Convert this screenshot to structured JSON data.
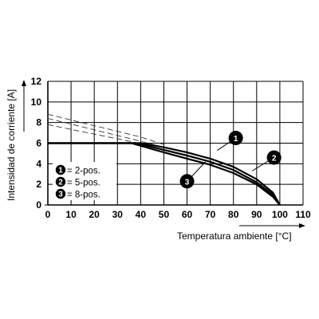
{
  "chart_data": {
    "type": "line",
    "xlabel": "Temperatura ambiente [°C]",
    "ylabel": "Intensidad de corriente [A]",
    "xlim": [
      0,
      110
    ],
    "ylim": [
      0,
      12
    ],
    "xticks": [
      "0",
      "10",
      "20",
      "30",
      "40",
      "50",
      "60",
      "70",
      "80",
      "90",
      "100",
      "110"
    ],
    "yticks": [
      "0",
      "2",
      "4",
      "6",
      "8",
      "10",
      "12"
    ],
    "grid": true,
    "legend_position": "bottom-left",
    "legend": [
      {
        "marker": "1",
        "label": "= 2-pos."
      },
      {
        "marker": "2",
        "label": "= 5-pos."
      },
      {
        "marker": "3",
        "label": "= 8-pos."
      }
    ],
    "series": [
      {
        "marker": "1",
        "derating_points": [
          [
            0,
            6
          ],
          [
            40,
            6
          ],
          [
            50,
            5.6
          ],
          [
            60,
            5.1
          ],
          [
            70,
            4.5
          ],
          [
            80,
            3.7
          ],
          [
            90,
            2.5
          ],
          [
            97,
            1.2
          ],
          [
            100,
            0
          ]
        ],
        "extrapolated_points": [
          [
            0,
            8.8
          ],
          [
            40,
            6.6
          ],
          [
            50,
            5.85
          ]
        ]
      },
      {
        "marker": "2",
        "derating_points": [
          [
            0,
            6
          ],
          [
            38,
            6
          ],
          [
            50,
            5.35
          ],
          [
            60,
            4.8
          ],
          [
            70,
            4.2
          ],
          [
            80,
            3.4
          ],
          [
            90,
            2.2
          ],
          [
            97,
            1.0
          ],
          [
            100,
            0
          ]
        ],
        "extrapolated_points": [
          [
            0,
            8.4
          ],
          [
            38,
            6.3
          ],
          [
            50,
            5.6
          ]
        ]
      },
      {
        "marker": "3",
        "derating_points": [
          [
            0,
            6
          ],
          [
            36,
            6
          ],
          [
            50,
            5.1
          ],
          [
            60,
            4.5
          ],
          [
            70,
            3.9
          ],
          [
            80,
            3.1
          ],
          [
            90,
            2.0
          ],
          [
            97,
            0.8
          ],
          [
            100,
            0
          ]
        ],
        "extrapolated_points": [
          [
            0,
            7.8
          ],
          [
            36,
            6.15
          ],
          [
            50,
            5.35
          ]
        ]
      }
    ],
    "annotations": [
      {
        "text": "1",
        "at": [
          81,
          6.5
        ],
        "points_to": [
          73,
          5.3
        ]
      },
      {
        "text": "2",
        "at": [
          97.5,
          4.6
        ],
        "points_to": [
          88,
          3.3
        ]
      },
      {
        "text": "3",
        "at": [
          60,
          2.3
        ],
        "points_to": [
          68,
          4.2
        ]
      }
    ]
  }
}
